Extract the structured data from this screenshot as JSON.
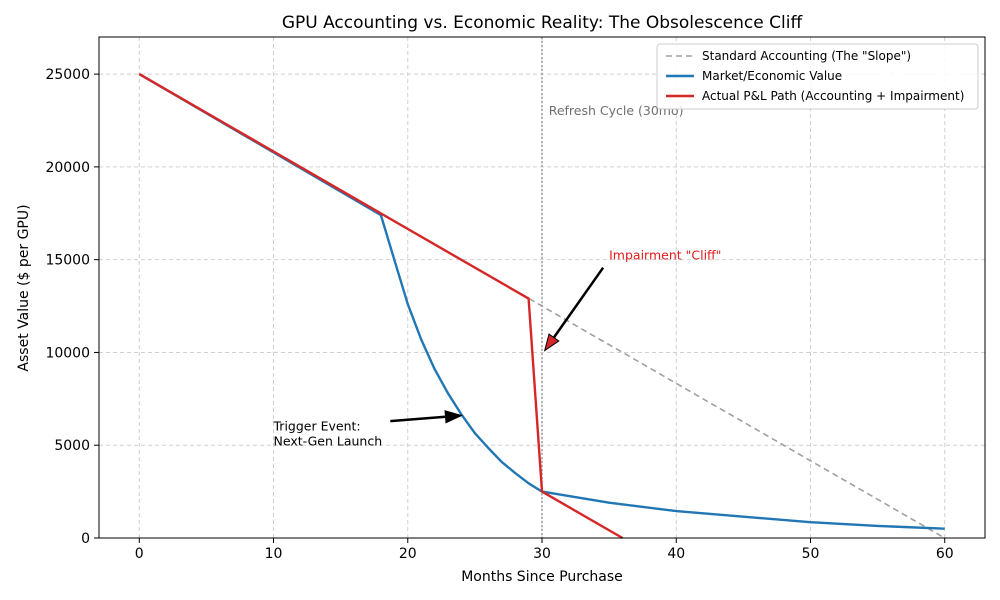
{
  "chart_data": {
    "type": "line",
    "title": "GPU Accounting vs. Economic Reality: The Obsolescence Cliff",
    "xlabel": "Months Since Purchase",
    "ylabel": "Asset Value ($ per GPU)",
    "xlim": [
      -3,
      63
    ],
    "ylim": [
      0,
      27000
    ],
    "xticks": [
      0,
      10,
      20,
      30,
      40,
      50,
      60
    ],
    "yticks": [
      0,
      5000,
      10000,
      15000,
      20000,
      25000
    ],
    "grid": true,
    "legend_position": "top-right",
    "series": [
      {
        "name": "Standard Accounting (The \"Slope\")",
        "color": "#a0a0a0",
        "style": "dashed",
        "x": [
          0,
          60
        ],
        "y": [
          25000,
          0
        ]
      },
      {
        "name": "Market/Economic Value",
        "color": "#2077b4",
        "style": "solid",
        "x": [
          0,
          18,
          19,
          20,
          21,
          22,
          23,
          24,
          25,
          26,
          27,
          28,
          29,
          30,
          35,
          40,
          45,
          50,
          55,
          60
        ],
        "y": [
          25000,
          17400,
          15000,
          12600,
          10700,
          9100,
          7800,
          6650,
          5650,
          4850,
          4100,
          3500,
          2950,
          2500,
          1900,
          1450,
          1150,
          850,
          650,
          500
        ]
      },
      {
        "name": "Actual P&L Path (Accounting + Impairment)",
        "color": "#d62728",
        "style": "solid",
        "x": [
          0,
          29,
          30,
          36
        ],
        "y": [
          25000,
          12900,
          2500,
          0
        ]
      }
    ],
    "vline": {
      "x": 30,
      "color": "#a0a0a0",
      "style": "dotted"
    },
    "annotations": [
      {
        "id": "refresh",
        "text": "Refresh Cycle (30mo)",
        "x": 30.5,
        "y": 22800,
        "color": "#707070"
      },
      {
        "id": "cliff",
        "text": "Impairment \"Cliff\"",
        "x": 35,
        "y": 15000,
        "color": "#e41a1c",
        "arrow_to": [
          30.2,
          10100
        ]
      },
      {
        "id": "trigger",
        "text": "Trigger Event:\nNext-Gen Launch",
        "x": 10,
        "y": 5800,
        "color": "#000000",
        "arrow_from": [
          18.7,
          6300
        ],
        "arrow_to": [
          24,
          6600
        ]
      }
    ]
  }
}
